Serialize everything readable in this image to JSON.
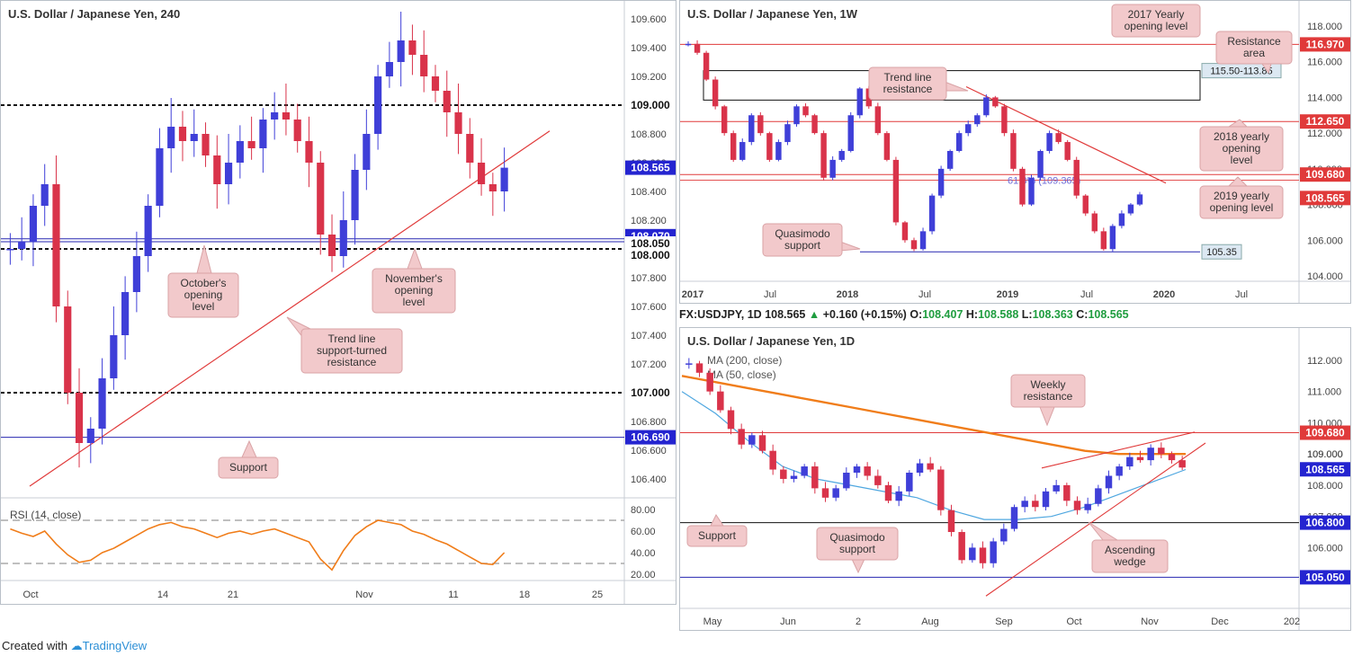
{
  "footer": {
    "prefix": "Created with",
    "brand": "TradingView"
  },
  "ohlc_bar": {
    "symbol": "FX:USDJPY, 1D",
    "last": "108.565",
    "arrow": "▲",
    "change": "+0.160 (+0.15%)",
    "o_label": "O:",
    "o": "108.407",
    "h_label": "H:",
    "h": "108.588",
    "l_label": "L:",
    "l": "108.363",
    "c_label": "C:",
    "c": "108.565"
  },
  "colors": {
    "bull": "#3f3fd8",
    "bear": "#d9334a",
    "red_line": "#e03a3a",
    "blue_line": "#2626b0",
    "orange": "#f07d1a",
    "sky": "#4fa7e0",
    "callout": "#f2c9cb"
  },
  "chart_data": [
    {
      "type": "candlestick",
      "title": "U.S. Dollar / Japanese Yen, 240",
      "ylim": [
        106.3,
        109.65
      ],
      "y_ticks": [
        "109.600",
        "109.400",
        "109.200",
        "109.000",
        "108.800",
        "108.600",
        "108.400",
        "108.200",
        "108.000",
        "107.800",
        "107.600",
        "107.400",
        "107.200",
        "107.000",
        "106.800",
        "106.600",
        "106.400"
      ],
      "x_ticks": [
        "Oct",
        "14",
        "21",
        "Nov",
        "11",
        "18",
        "25"
      ],
      "price_tags": [
        {
          "label": "109.000",
          "value": 109.0,
          "color": "#111111"
        },
        {
          "label": "108.565",
          "value": 108.565,
          "color": "#2424d0"
        },
        {
          "label": "108.070",
          "value": 108.07,
          "color": "#2424d0"
        },
        {
          "label": "108.050",
          "value": 108.05,
          "color": "#111111"
        },
        {
          "label": "108.000",
          "value": 108.0,
          "color": "#111111"
        },
        {
          "label": "107.000",
          "value": 107.0,
          "color": "#111111"
        },
        {
          "label": "106.690",
          "value": 106.69,
          "color": "#2424d0"
        }
      ],
      "levels": [
        109.0,
        108.07,
        108.05,
        107.0,
        106.69
      ],
      "trendline": {
        "from": 106.35,
        "to": 108.82
      },
      "annotations": [
        "October's opening level",
        "November's opening level",
        "Trend line support-turned resistance",
        "Support"
      ],
      "price_path": [
        108.0,
        108.05,
        108.3,
        108.45,
        107.6,
        107.0,
        106.65,
        106.75,
        107.1,
        107.4,
        107.7,
        107.95,
        108.3,
        108.7,
        108.85,
        108.75,
        108.8,
        108.65,
        108.45,
        108.6,
        108.75,
        108.7,
        108.9,
        108.95,
        108.9,
        108.75,
        108.6,
        108.1,
        107.95,
        108.2,
        108.55,
        108.8,
        109.2,
        109.3,
        109.45,
        109.35,
        109.2,
        109.1,
        108.95,
        108.8,
        108.6,
        108.45,
        108.4,
        108.565
      ],
      "rsi": {
        "label": "RSI (14, close)",
        "ylim": [
          15,
          85
        ],
        "y_ticks": [
          "80.00",
          "60.00",
          "40.00",
          "20.00"
        ],
        "bands": [
          70,
          30
        ],
        "values": [
          62,
          58,
          55,
          60,
          48,
          38,
          31,
          33,
          40,
          44,
          50,
          56,
          62,
          66,
          68,
          64,
          62,
          58,
          54,
          58,
          60,
          57,
          60,
          62,
          58,
          54,
          50,
          34,
          24,
          42,
          56,
          64,
          70,
          68,
          66,
          60,
          57,
          52,
          48,
          42,
          36,
          30,
          29,
          40
        ]
      }
    },
    {
      "type": "candlestick",
      "title": "U.S. Dollar / Japanese Yen, 1W",
      "ylim": [
        103.8,
        118.4
      ],
      "y_ticks": [
        "118.000",
        "116.000",
        "114.000",
        "112.000",
        "110.000",
        "108.000",
        "106.000",
        "104.000"
      ],
      "x_ticks": [
        "2017",
        "Jul",
        "2018",
        "Jul",
        "2019",
        "Jul",
        "2020",
        "Jul"
      ],
      "price_tags": [
        {
          "label": "116.970",
          "value": 116.97,
          "color": "#e03a3a"
        },
        {
          "label": "115.50-113.85",
          "value": 115.5,
          "color": "#dce8f2"
        },
        {
          "label": "112.650",
          "value": 112.65,
          "color": "#e03a3a"
        },
        {
          "label": "109.680",
          "value": 109.68,
          "color": "#e03a3a"
        },
        {
          "label": "108.565",
          "value": 108.565,
          "color": "#e03a3a"
        },
        {
          "label": "105.35",
          "value": 105.35,
          "color": "#dce8f2"
        }
      ],
      "zone": [
        115.5,
        113.85
      ],
      "fib_label": "61.8% (109.365)",
      "annotations": [
        "2017 Yearly opening level",
        "Resistance area",
        "Trend line resistance",
        "2018 yearly opening level",
        "2019 yearly opening level",
        "Quasimodo support"
      ],
      "price_path": [
        117.0,
        116.5,
        115.0,
        113.5,
        112.0,
        110.5,
        111.5,
        113.0,
        112.0,
        110.5,
        111.5,
        112.5,
        113.5,
        113.0,
        112.0,
        109.5,
        110.5,
        111.0,
        113.0,
        114.5,
        113.5,
        112.0,
        110.5,
        107.0,
        106.0,
        105.5,
        106.5,
        108.5,
        110.0,
        111.0,
        112.0,
        112.5,
        113.0,
        114.0,
        113.5,
        112.0,
        110.0,
        108.0,
        109.5,
        111.0,
        112.0,
        111.5,
        110.5,
        108.5,
        107.5,
        106.5,
        105.5,
        106.8,
        107.5,
        108.0,
        108.565
      ]
    },
    {
      "type": "candlestick",
      "title": "U.S. Dollar / Japanese Yen, 1D",
      "ylim": [
        104.4,
        112.4
      ],
      "y_ticks": [
        "112.000",
        "111.000",
        "110.000",
        "109.000",
        "108.000",
        "107.000",
        "106.000",
        "105.000"
      ],
      "x_ticks": [
        "May",
        "Jun",
        "2",
        "Aug",
        "Sep",
        "Oct",
        "Nov",
        "Dec",
        "202"
      ],
      "series": [
        {
          "name": "MA (200, close)",
          "values": [
            111.5,
            111.3,
            111.1,
            110.9,
            110.7,
            110.5,
            110.3,
            110.1,
            109.9,
            109.7,
            109.5,
            109.3,
            109.1,
            109.0,
            109.0,
            109.0
          ]
        },
        {
          "name": "MA (50, close)",
          "values": [
            111.0,
            110.3,
            109.4,
            108.6,
            108.2,
            108.0,
            107.8,
            107.6,
            107.2,
            106.9,
            106.9,
            107.0,
            107.3,
            107.7,
            108.1,
            108.5
          ]
        }
      ],
      "price_tags": [
        {
          "label": "109.680",
          "value": 109.68,
          "color": "#e03a3a"
        },
        {
          "label": "109.000",
          "value": 109.0,
          "color": "#none"
        },
        {
          "label": "108.565",
          "value": 108.565,
          "color": "#2424d0"
        },
        {
          "label": "106.800",
          "value": 106.8,
          "color": "#2424d0"
        },
        {
          "label": "105.050",
          "value": 105.05,
          "color": "#2424d0"
        }
      ],
      "annotations": [
        "Weekly resistance",
        "Support",
        "Quasimodo support",
        "Ascending wedge"
      ],
      "price_path": [
        111.9,
        111.6,
        111.0,
        110.4,
        109.8,
        109.3,
        109.6,
        109.1,
        108.5,
        108.2,
        108.3,
        108.6,
        107.9,
        107.6,
        107.9,
        108.4,
        108.6,
        108.3,
        108.0,
        107.5,
        107.8,
        108.4,
        108.7,
        108.5,
        107.2,
        106.5,
        105.6,
        106.0,
        105.5,
        106.2,
        106.6,
        107.3,
        107.5,
        107.3,
        107.8,
        108.0,
        107.5,
        107.2,
        107.4,
        107.9,
        108.3,
        108.6,
        108.9,
        108.8,
        109.2,
        109.0,
        108.8,
        108.565
      ]
    }
  ],
  "panel_titles": {
    "p1": "U.S. Dollar / Japanese Yen, 240",
    "p2": "U.S. Dollar / Japanese Yen, 1W",
    "p3": "U.S. Dollar / Japanese Yen, 1D"
  }
}
